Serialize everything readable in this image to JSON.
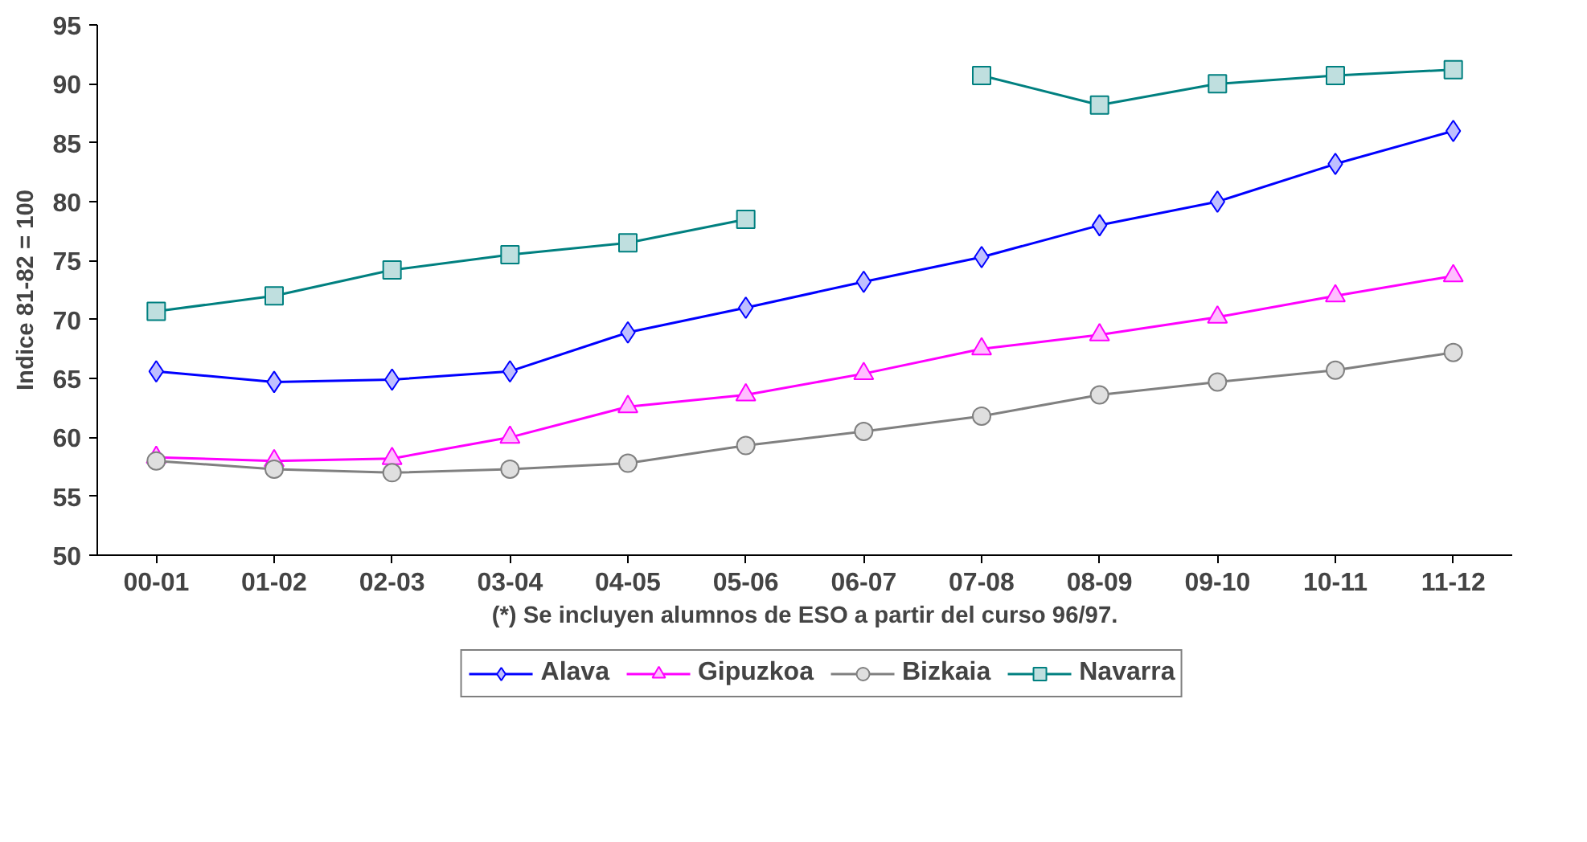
{
  "chart_data": {
    "type": "line",
    "ylabel": "Indice 81-82 = 100",
    "xlabel": "(*) Se incluyen alumnos de ESO a partir del curso 96/97.",
    "categories": [
      "00-01",
      "01-02",
      "02-03",
      "03-04",
      "04-05",
      "05-06",
      "06-07",
      "07-08",
      "08-09",
      "09-10",
      "10-11",
      "11-12"
    ],
    "series": [
      {
        "name": "Alava",
        "color": "#0000ff",
        "marker": "diamond",
        "values": [
          65.6,
          64.7,
          64.9,
          65.6,
          68.9,
          71.0,
          73.2,
          75.3,
          78.0,
          80.0,
          83.2,
          86.0
        ]
      },
      {
        "name": "Gipuzkoa",
        "color": "#ff00ff",
        "marker": "triangle",
        "values": [
          58.3,
          58.0,
          58.2,
          60.0,
          62.6,
          63.6,
          65.4,
          67.5,
          68.7,
          70.2,
          72.0,
          73.7
        ]
      },
      {
        "name": "Bizkaia",
        "color": "#808080",
        "marker": "circle",
        "values": [
          58.0,
          57.3,
          57.0,
          57.3,
          57.8,
          59.3,
          60.5,
          61.8,
          63.6,
          64.7,
          65.7,
          67.2
        ]
      },
      {
        "name": "Navarra",
        "color": "#008080",
        "marker": "square",
        "values": [
          70.7,
          72.0,
          74.2,
          75.5,
          76.5,
          78.5,
          null,
          90.7,
          88.2,
          90.0,
          90.7,
          91.2
        ]
      }
    ],
    "ylim": [
      50,
      95
    ],
    "yticks": [
      50,
      55,
      60,
      65,
      70,
      75,
      80,
      85,
      90,
      95
    ],
    "grid": false,
    "legend": "bottom",
    "line_style": "solid"
  }
}
